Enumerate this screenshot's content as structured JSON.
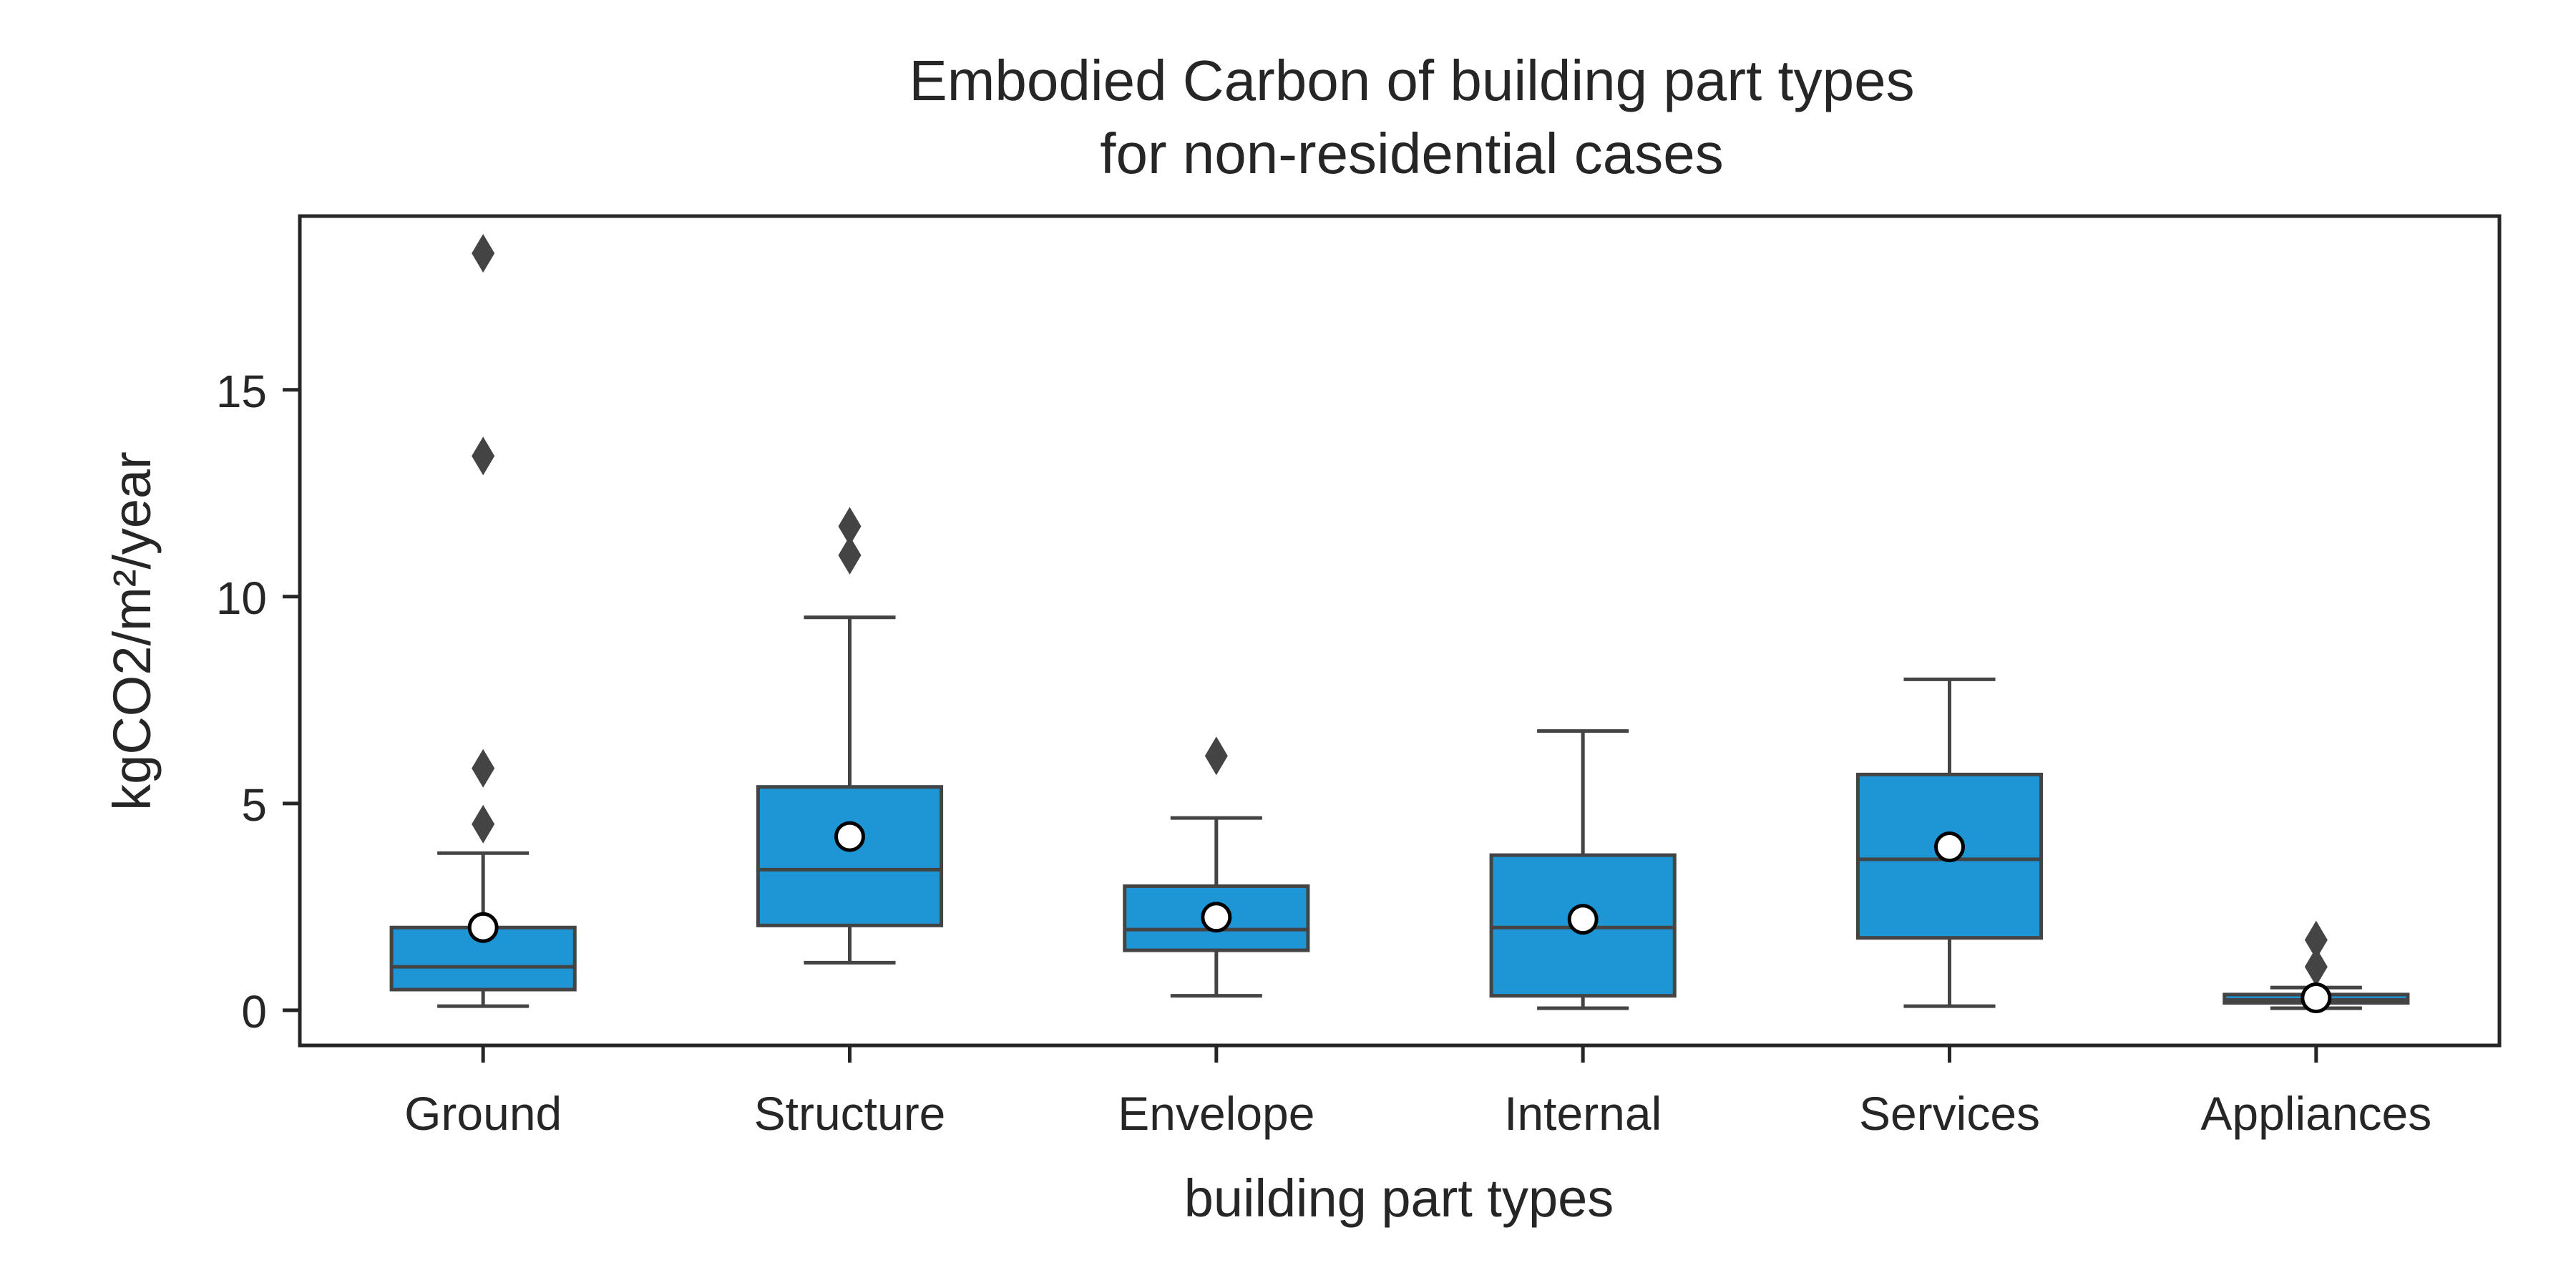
{
  "chart_data": {
    "type": "box",
    "title_line1": "Embodied Carbon of building part types",
    "title_line2": "for non-residential cases",
    "xlabel": "building part types",
    "ylabel": "kgCO2/m²/year",
    "ylim": [
      -0.85,
      19.2
    ],
    "yticks": [
      0,
      5,
      10,
      15
    ],
    "grid": false,
    "legend": "none",
    "box_color": "#1e96d6",
    "line_color": "#444444",
    "categories": [
      "Ground",
      "Structure",
      "Envelope",
      "Internal",
      "Services",
      "Appliances"
    ],
    "boxes": [
      {
        "whisker_low": 0.1,
        "q1": 0.5,
        "median": 1.05,
        "q3": 2.0,
        "whisker_high": 3.8,
        "mean": 2.0,
        "outliers": [
          4.5,
          5.85,
          13.4,
          18.3
        ]
      },
      {
        "whisker_low": 1.15,
        "q1": 2.05,
        "median": 3.4,
        "q3": 5.4,
        "whisker_high": 9.5,
        "mean": 4.2,
        "outliers": [
          11.0,
          11.7
        ]
      },
      {
        "whisker_low": 0.35,
        "q1": 1.45,
        "median": 1.95,
        "q3": 3.0,
        "whisker_high": 4.65,
        "mean": 2.25,
        "outliers": [
          6.15
        ]
      },
      {
        "whisker_low": 0.05,
        "q1": 0.35,
        "median": 2.0,
        "q3": 3.75,
        "whisker_high": 6.75,
        "mean": 2.2,
        "outliers": []
      },
      {
        "whisker_low": 0.1,
        "q1": 1.75,
        "median": 3.65,
        "q3": 5.7,
        "whisker_high": 8.0,
        "mean": 3.95,
        "outliers": []
      },
      {
        "whisker_low": 0.05,
        "q1": 0.18,
        "median": 0.25,
        "q3": 0.38,
        "whisker_high": 0.55,
        "mean": 0.3,
        "outliers": [
          1.05,
          1.7
        ]
      }
    ]
  }
}
